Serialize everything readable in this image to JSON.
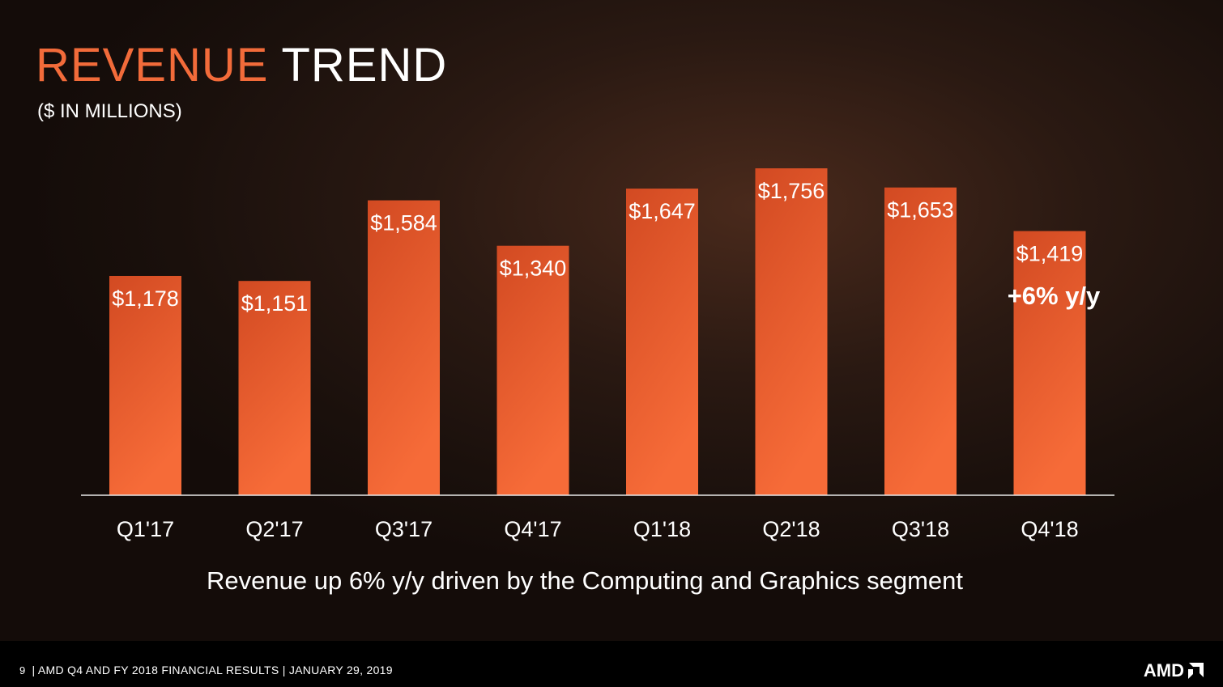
{
  "slide": {
    "title_accent": "REVENUE",
    "title_main": "TREND",
    "subtitle": "($ IN MILLIONS)",
    "caption": "Revenue up 6% y/y driven by the Computing and Graphics segment",
    "annotation": "+6% y/y"
  },
  "footer": {
    "page_number": "9",
    "text": "| AMD Q4 AND FY 2018 FINANCIAL RESULTS | JANUARY 29, 2019",
    "logo_text": "AMD",
    "logo_icon": "amd-arrow-icon"
  },
  "colors": {
    "bar_top": "#d24a22",
    "bar_bottom": "#f66b38",
    "accent": "#f26b3a",
    "axis": "#e8e8e8"
  },
  "chart_data": {
    "type": "bar",
    "title": "REVENUE TREND",
    "ylabel": "",
    "xlabel": "",
    "units": "$ in millions",
    "categories": [
      "Q1'17",
      "Q2'17",
      "Q3'17",
      "Q4'17",
      "Q1'18",
      "Q2'18",
      "Q3'18",
      "Q4'18"
    ],
    "values": [
      1178,
      1151,
      1584,
      1340,
      1647,
      1756,
      1653,
      1419
    ],
    "value_labels": [
      "$1,178",
      "$1,151",
      "$1,584",
      "$1,340",
      "$1,647",
      "$1,756",
      "$1,653",
      "$1,419"
    ],
    "ylim": [
      0,
      1800
    ],
    "grid": false,
    "legend": "none"
  }
}
